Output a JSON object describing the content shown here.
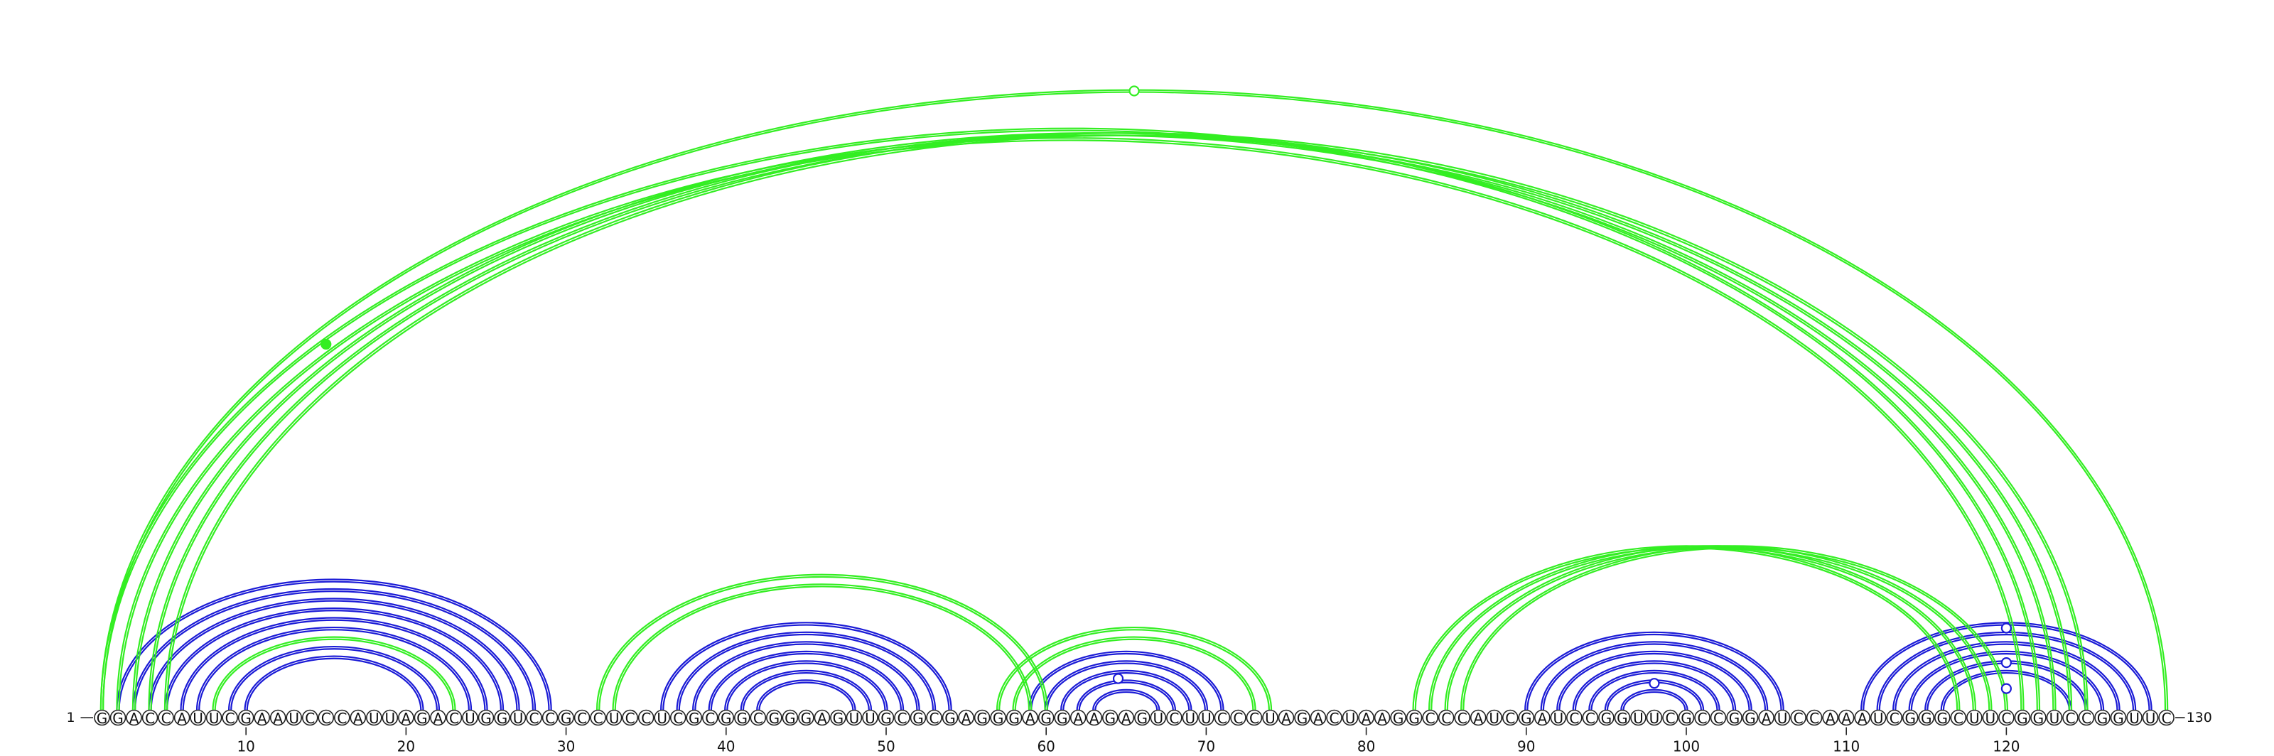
{
  "sequence": "GGACCAUUCGAAUCCCAUUAGACUGGUCCGCCUCCUCGCGGCGGGAGUUGCGCGAGGGAGGAAGAGUCUUCCCUAGACUAAGGCCCAUCGAUCCGGUUCGCCGGAUCCAAAUCGGGCUUCGGUCCGGUUC",
  "start_label": "1",
  "end_label": "130",
  "tick_labels": [
    "10",
    "20",
    "30",
    "40",
    "50",
    "60",
    "70",
    "80",
    "90",
    "100",
    "110",
    "120"
  ],
  "colors": {
    "pairs_blue": "#1b1bd6",
    "pairs_green": "#33ee22",
    "nucleotide_outline": "#222222"
  },
  "chart_data": {
    "type": "arc",
    "length": 130,
    "ticks": [
      10,
      20,
      30,
      40,
      50,
      60,
      70,
      80,
      90,
      100,
      110,
      120
    ],
    "series": [
      {
        "color": "#1b1bd6",
        "pairs": [
          [
            2,
            29
          ],
          [
            3,
            28
          ],
          [
            4,
            27
          ],
          [
            5,
            26
          ],
          [
            6,
            25
          ],
          [
            7,
            24
          ],
          [
            9,
            22
          ],
          [
            10,
            21
          ],
          [
            36,
            54
          ],
          [
            37,
            53
          ],
          [
            38,
            52
          ],
          [
            39,
            51
          ],
          [
            40,
            50
          ],
          [
            41,
            49
          ],
          [
            42,
            48
          ],
          [
            59,
            71
          ],
          [
            60,
            70
          ],
          [
            61,
            69
          ],
          [
            62,
            68
          ],
          [
            63,
            67
          ],
          [
            90,
            106
          ],
          [
            91,
            105
          ],
          [
            92,
            104
          ],
          [
            93,
            103
          ],
          [
            94,
            102
          ],
          [
            95,
            101
          ],
          [
            96,
            100
          ],
          [
            111,
            129
          ],
          [
            112,
            128
          ],
          [
            113,
            127
          ],
          [
            114,
            126
          ],
          [
            115,
            125
          ],
          [
            116,
            124
          ]
        ],
        "markers": [
          {
            "pos": 64.5,
            "height": 0.55
          },
          {
            "pos": 98,
            "height": 0.35
          },
          {
            "pos": 120,
            "height": 0.95
          },
          {
            "pos": 120,
            "height": 0.55
          },
          {
            "pos": 120,
            "height": 0.25
          }
        ]
      },
      {
        "color": "#33ee22",
        "pairs": [
          [
            1,
            122
          ],
          [
            2,
            121
          ],
          [
            3,
            123
          ],
          [
            4,
            124
          ],
          [
            5,
            125
          ],
          [
            1,
            130
          ],
          [
            8,
            23
          ],
          [
            32,
            60
          ],
          [
            33,
            59
          ],
          [
            57,
            74
          ],
          [
            58,
            73
          ],
          [
            83,
            117
          ],
          [
            84,
            118
          ],
          [
            85,
            119
          ],
          [
            86,
            120
          ]
        ],
        "markers": [
          {
            "pos": 65.5,
            "height": 1.0
          },
          {
            "pos": 15,
            "height": 0.95
          }
        ]
      }
    ]
  }
}
